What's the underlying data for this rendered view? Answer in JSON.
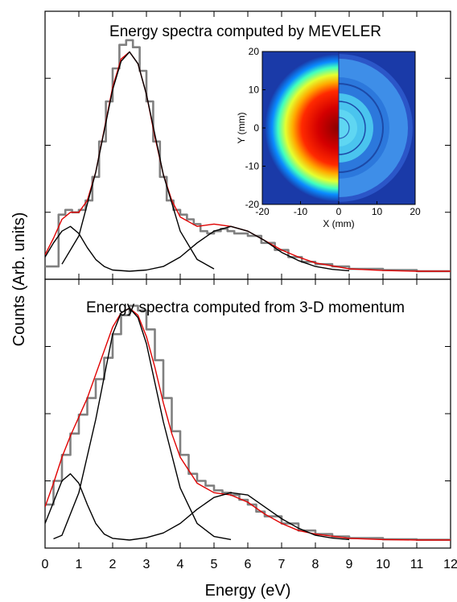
{
  "figure": {
    "ylabel": "Counts (Arb. units)",
    "xlabel": "Energy (eV)"
  },
  "colors": {
    "histogram": "#808080",
    "fit_total": "#e00000",
    "component": "#000000",
    "frame": "#000000"
  },
  "chart_data": [
    {
      "type": "line",
      "panel": "top",
      "title": "Energy spectra computed by MEVELER",
      "xlim": [
        0,
        12
      ],
      "ylim": [
        0,
        1.0
      ],
      "xticks": [
        0,
        1,
        2,
        3,
        4,
        5,
        6,
        7,
        8,
        9,
        10,
        11,
        12
      ],
      "grid": false,
      "series": [
        {
          "style": "step-histogram",
          "x": [
            0.0,
            0.4,
            0.6,
            0.8,
            1.0,
            1.2,
            1.4,
            1.6,
            1.8,
            2.0,
            2.2,
            2.4,
            2.6,
            2.8,
            3.0,
            3.2,
            3.4,
            3.6,
            3.8,
            4.0,
            4.2,
            4.4,
            4.6,
            4.8,
            5.0,
            5.2,
            5.4,
            5.6,
            5.8,
            6.0,
            6.4,
            6.8,
            7.2,
            7.6,
            8.0,
            8.5,
            9.0,
            10.0,
            11.0,
            12.0
          ],
          "y": [
            0.02,
            0.24,
            0.26,
            0.25,
            0.26,
            0.3,
            0.4,
            0.55,
            0.72,
            0.86,
            0.96,
            0.98,
            0.95,
            0.85,
            0.72,
            0.55,
            0.4,
            0.3,
            0.26,
            0.24,
            0.22,
            0.2,
            0.17,
            0.16,
            0.17,
            0.18,
            0.17,
            0.16,
            0.16,
            0.15,
            0.12,
            0.09,
            0.06,
            0.04,
            0.03,
            0.02,
            0.01,
            0.005,
            0.0,
            0.0
          ]
        },
        {
          "style": "fit-total",
          "x": [
            0.0,
            0.25,
            0.5,
            0.75,
            1.0,
            1.25,
            1.5,
            1.75,
            2.0,
            2.25,
            2.5,
            2.75,
            3.0,
            3.25,
            3.5,
            3.75,
            4.0,
            4.5,
            5.0,
            5.5,
            6.0,
            6.5,
            7.0,
            7.5,
            8.0,
            9.0,
            10.0,
            11.0,
            12.0
          ],
          "y": [
            0.07,
            0.14,
            0.22,
            0.25,
            0.25,
            0.3,
            0.42,
            0.6,
            0.78,
            0.9,
            0.93,
            0.88,
            0.75,
            0.57,
            0.41,
            0.3,
            0.23,
            0.19,
            0.2,
            0.19,
            0.17,
            0.13,
            0.09,
            0.06,
            0.035,
            0.01,
            0.003,
            0.0,
            0.0
          ]
        },
        {
          "style": "component",
          "x": [
            0.0,
            0.25,
            0.5,
            0.75,
            1.0,
            1.25,
            1.5,
            1.75,
            2.0,
            2.5
          ],
          "y": [
            0.06,
            0.12,
            0.17,
            0.19,
            0.16,
            0.1,
            0.05,
            0.02,
            0.005,
            0.0
          ]
        },
        {
          "style": "component",
          "x": [
            0.5,
            1.0,
            1.5,
            2.0,
            2.25,
            2.5,
            2.75,
            3.0,
            3.5,
            4.0,
            4.5,
            5.0
          ],
          "y": [
            0.03,
            0.15,
            0.42,
            0.77,
            0.89,
            0.93,
            0.88,
            0.75,
            0.41,
            0.17,
            0.05,
            0.01
          ]
        },
        {
          "style": "component",
          "x": [
            2.5,
            3.0,
            3.5,
            4.0,
            4.5,
            5.0,
            5.5,
            6.0,
            6.5,
            7.0,
            7.5,
            8.0,
            8.5,
            9.0
          ],
          "y": [
            0.0,
            0.005,
            0.02,
            0.06,
            0.12,
            0.17,
            0.19,
            0.17,
            0.13,
            0.08,
            0.045,
            0.02,
            0.008,
            0.002
          ]
        }
      ],
      "inset": {
        "type": "heatmap",
        "xlabel": "X (mm)",
        "ylabel": "Y (mm)",
        "xlim": [
          -20,
          20
        ],
        "ylim": [
          -20,
          20
        ],
        "xticks": [
          -20,
          -10,
          0,
          10,
          20
        ],
        "yticks": [
          -20,
          -10,
          0,
          10,
          20
        ]
      }
    },
    {
      "type": "line",
      "panel": "bottom",
      "title": "Energy spectra computed from 3-D momentum",
      "xlim": [
        0,
        12
      ],
      "ylim": [
        0,
        1.0
      ],
      "xticks": [
        0,
        1,
        2,
        3,
        4,
        5,
        6,
        7,
        8,
        9,
        10,
        11,
        12
      ],
      "grid": false,
      "series": [
        {
          "style": "step-histogram",
          "x": [
            0.0,
            0.25,
            0.5,
            0.75,
            1.0,
            1.25,
            1.5,
            1.75,
            2.0,
            2.25,
            2.5,
            2.75,
            3.0,
            3.25,
            3.5,
            3.75,
            4.0,
            4.25,
            4.5,
            4.75,
            5.0,
            5.25,
            5.5,
            5.75,
            6.0,
            6.25,
            6.5,
            7.0,
            7.5,
            8.0,
            8.5,
            9.0,
            10.0,
            11.0,
            12.0
          ],
          "y": [
            0.15,
            0.25,
            0.36,
            0.45,
            0.53,
            0.6,
            0.68,
            0.77,
            0.87,
            0.95,
            0.99,
            0.97,
            0.89,
            0.76,
            0.6,
            0.46,
            0.36,
            0.28,
            0.25,
            0.23,
            0.21,
            0.2,
            0.19,
            0.17,
            0.15,
            0.12,
            0.1,
            0.07,
            0.04,
            0.025,
            0.015,
            0.008,
            0.003,
            0.001,
            0.0
          ]
        },
        {
          "style": "fit-total",
          "x": [
            0.0,
            0.25,
            0.5,
            0.75,
            1.0,
            1.25,
            1.5,
            1.75,
            2.0,
            2.25,
            2.5,
            2.75,
            3.0,
            3.25,
            3.5,
            3.75,
            4.0,
            4.5,
            5.0,
            5.5,
            6.0,
            6.5,
            7.0,
            7.5,
            8.0,
            9.0,
            10.0,
            11.0,
            12.0
          ],
          "y": [
            0.14,
            0.24,
            0.35,
            0.44,
            0.52,
            0.6,
            0.7,
            0.8,
            0.9,
            0.96,
            0.98,
            0.95,
            0.86,
            0.73,
            0.58,
            0.45,
            0.35,
            0.24,
            0.2,
            0.19,
            0.16,
            0.11,
            0.07,
            0.04,
            0.025,
            0.007,
            0.002,
            0.0,
            0.0
          ]
        },
        {
          "style": "component",
          "x": [
            0.0,
            0.25,
            0.5,
            0.75,
            1.0,
            1.25,
            1.5,
            1.75,
            2.0,
            2.5
          ],
          "y": [
            0.07,
            0.16,
            0.25,
            0.28,
            0.24,
            0.15,
            0.07,
            0.025,
            0.007,
            0.0
          ]
        },
        {
          "style": "component",
          "x": [
            0.25,
            0.5,
            1.0,
            1.5,
            2.0,
            2.25,
            2.5,
            2.75,
            3.0,
            3.5,
            4.0,
            4.5,
            5.0,
            5.5
          ],
          "y": [
            0.005,
            0.02,
            0.2,
            0.51,
            0.87,
            0.96,
            0.98,
            0.94,
            0.83,
            0.5,
            0.22,
            0.07,
            0.015,
            0.002
          ]
        },
        {
          "style": "component",
          "x": [
            2.5,
            3.0,
            3.5,
            4.0,
            4.5,
            5.0,
            5.5,
            6.0,
            6.5,
            7.0,
            7.5,
            8.0,
            8.5,
            9.0
          ],
          "y": [
            0.0,
            0.01,
            0.03,
            0.07,
            0.13,
            0.18,
            0.2,
            0.19,
            0.14,
            0.09,
            0.05,
            0.02,
            0.008,
            0.002
          ]
        }
      ]
    }
  ]
}
